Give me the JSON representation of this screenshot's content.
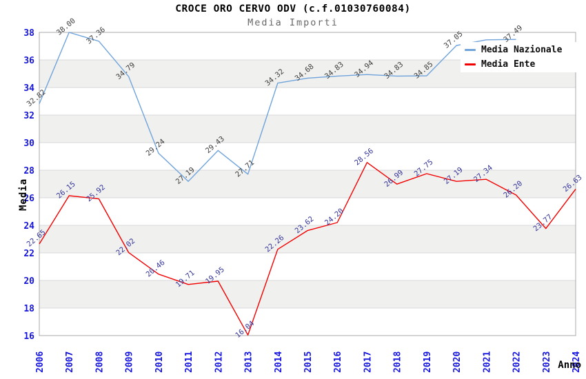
{
  "chart_data": {
    "type": "line",
    "title": "CROCE ORO CERVO ODV (c.f.01030760084)",
    "subtitle": "Media Importi",
    "xlabel": "Anno",
    "ylabel": "Media",
    "ylim": [
      16,
      38
    ],
    "ytick_step": 2,
    "grid": "horizontal-bands",
    "legend_position": "top-right",
    "categories": [
      "2006",
      "2007",
      "2008",
      "2009",
      "2010",
      "2011",
      "2012",
      "2013",
      "2014",
      "2015",
      "2016",
      "2017",
      "2018",
      "2019",
      "2020",
      "2021",
      "2022",
      "2023",
      "2024"
    ],
    "series": [
      {
        "name": "Media Nazionale",
        "color": "#6fa3dc",
        "label_color": "#3d3d3d",
        "values": [
          32.82,
          38.0,
          37.36,
          34.79,
          29.24,
          27.19,
          29.43,
          27.71,
          34.32,
          34.68,
          34.83,
          34.94,
          34.83,
          34.85,
          37.05,
          37.46,
          37.49,
          null,
          null
        ],
        "labels": [
          "32.82",
          "38.00",
          "37.36",
          "34.79",
          "29.24",
          "27.19",
          "29.43",
          "27.71",
          "34.32",
          "34.68",
          "34.83",
          "34.94",
          "34.83",
          "34.85",
          "37.05",
          "",
          "37.49",
          "",
          ""
        ]
      },
      {
        "name": "Media Ente",
        "color": "#f20000",
        "label_color": "#333399",
        "values": [
          22.65,
          26.15,
          25.92,
          22.02,
          20.46,
          19.71,
          19.95,
          16.04,
          22.26,
          23.62,
          24.2,
          28.56,
          26.99,
          27.75,
          27.19,
          27.34,
          26.2,
          23.77,
          26.63
        ],
        "labels": [
          "22.65",
          "26.15",
          "25.92",
          "22.02",
          "20.46",
          "19.71",
          "19.95",
          "16.04",
          "22.26",
          "23.62",
          "24.20",
          "28.56",
          "26.99",
          "27.75",
          "27.19",
          "27.34",
          "26.20",
          "23.77",
          "26.63"
        ]
      }
    ],
    "colors": {
      "axis_text": "#1515dd",
      "band_fill": "#f0f0ee",
      "grid_line": "#d9d9d9",
      "plot_border": "#a8a8a8",
      "axis_title": "#000000"
    }
  }
}
